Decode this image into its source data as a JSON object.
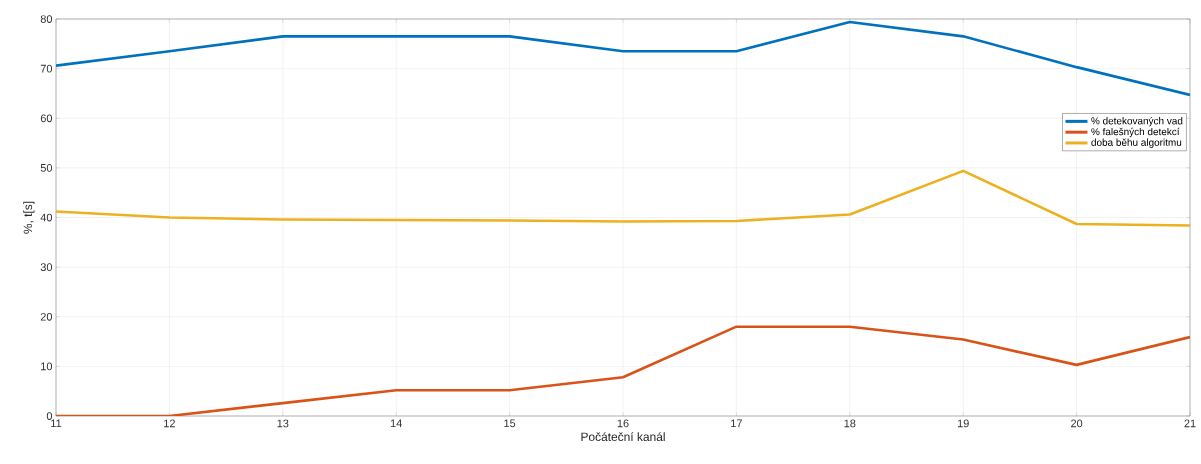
{
  "chart_data": {
    "type": "line",
    "xlabel": "Počáteční kanál",
    "ylabel": "%, t[s]",
    "x": [
      11,
      12,
      13,
      14,
      15,
      16,
      17,
      18,
      19,
      20,
      21
    ],
    "series": [
      {
        "name": "% detekovaných vad",
        "color": "#0072bd",
        "values": [
          70.6,
          73.5,
          76.5,
          76.5,
          76.5,
          73.5,
          73.5,
          79.4,
          76.5,
          70.3,
          64.7
        ]
      },
      {
        "name": "% falešných detekcí",
        "color": "#d95319",
        "values": [
          0,
          0,
          2.6,
          5.2,
          5.2,
          7.8,
          18,
          18,
          15.4,
          10.3,
          15.9
        ]
      },
      {
        "name": "doba běhu algoritmu",
        "color": "#edb120",
        "values": [
          41.2,
          40,
          39.6,
          39.5,
          39.4,
          39.2,
          39.3,
          40.6,
          49.4,
          38.7,
          38.4
        ]
      }
    ],
    "xlim": [
      11,
      21
    ],
    "ylim": [
      0,
      80
    ],
    "xticks": [
      11,
      12,
      13,
      14,
      15,
      16,
      17,
      18,
      19,
      20,
      21
    ],
    "yticks": [
      0,
      10,
      20,
      30,
      40,
      50,
      60,
      70,
      80
    ],
    "grid": true,
    "legend": "right",
    "marker": "none",
    "line_style": "solid"
  }
}
